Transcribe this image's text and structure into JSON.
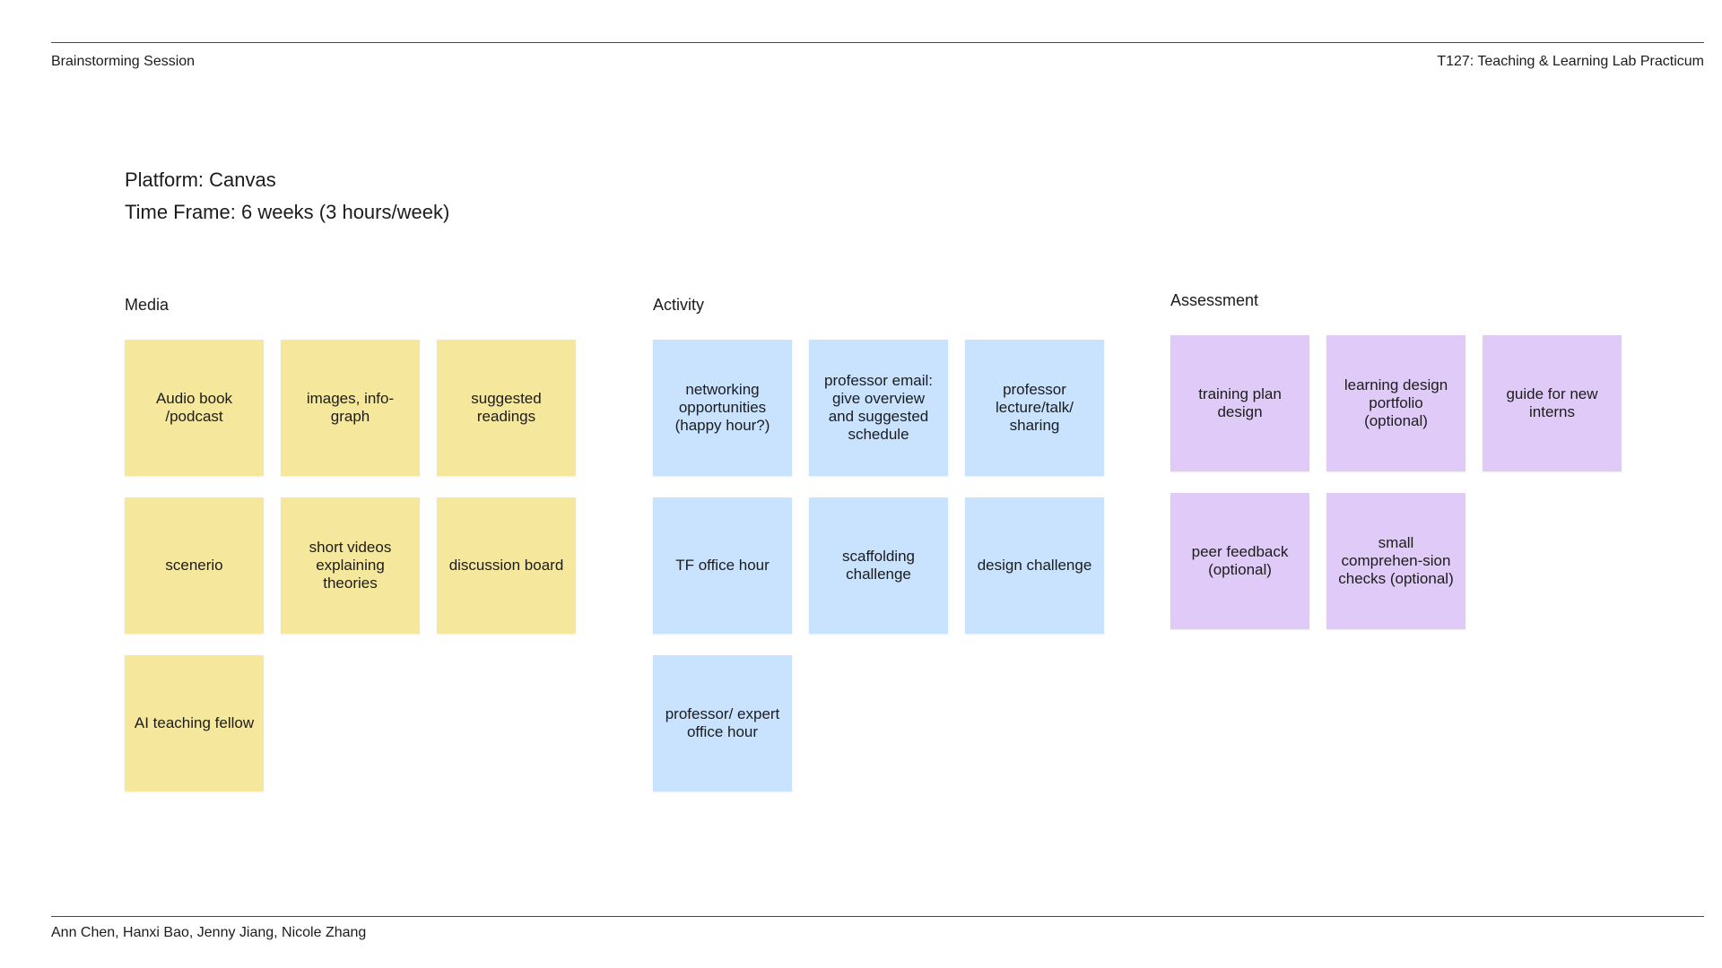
{
  "header": {
    "board_title": "Brainstorming Session",
    "course_title": "T127: Teaching & Learning Lab Practicum"
  },
  "info": {
    "platform": "Platform: Canvas",
    "timeframe": "Time Frame: 6 weeks (3 hours/week)"
  },
  "columns": [
    {
      "title": "Media",
      "note_color": "#F5E79C",
      "notes": [
        "Audio book /podcast",
        "images, info-graph",
        "suggested readings",
        "scenerio",
        "short videos explaining theories",
        "discussion board",
        "AI teaching fellow"
      ]
    },
    {
      "title": "Activity",
      "note_color": "#C9E2FD",
      "notes": [
        "networking opportunities (happy hour?)",
        "professor email: give overview and suggested schedule",
        "professor lecture/talk/ sharing",
        "TF office hour",
        "scaffolding challenge",
        "design challenge",
        "professor/ expert office hour"
      ]
    },
    {
      "title": "Assessment",
      "note_color": "#E0CBF8",
      "notes": [
        "training plan design",
        "learning design portfolio (optional)",
        "guide for new interns",
        "peer feedback (optional)",
        "small comprehen-sion checks (optional)"
      ]
    }
  ],
  "footer": {
    "authors": "Ann Chen, Hanxi Bao, Jenny Jiang, Nicole Zhang"
  }
}
